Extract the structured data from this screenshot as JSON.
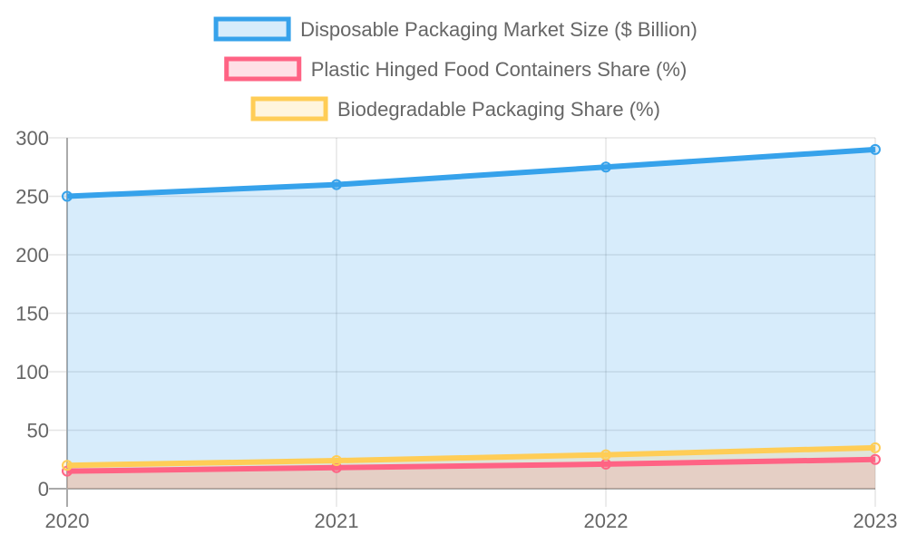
{
  "chart_data": {
    "type": "area",
    "categories": [
      "2020",
      "2021",
      "2022",
      "2023"
    ],
    "series": [
      {
        "name": "Disposable Packaging Market Size ($ Billion)",
        "values": [
          250,
          260,
          275,
          290
        ],
        "color": "#36a2eb",
        "fill": "rgba(54,162,235,0.2)"
      },
      {
        "name": "Plastic Hinged Food Containers Share (%)",
        "values": [
          15,
          18,
          21,
          25
        ],
        "color": "#ff6384",
        "fill": "rgba(255,99,132,0.2)"
      },
      {
        "name": "Biodegradable Packaging Share (%)",
        "values": [
          20,
          24,
          29,
          35
        ],
        "color": "#ffcd56",
        "fill": "rgba(255,205,86,0.2)"
      }
    ],
    "yticks": [
      "0",
      "50",
      "100",
      "150",
      "200",
      "250",
      "300"
    ],
    "ylim": [
      0,
      300
    ],
    "grid": true,
    "legend": "top"
  }
}
